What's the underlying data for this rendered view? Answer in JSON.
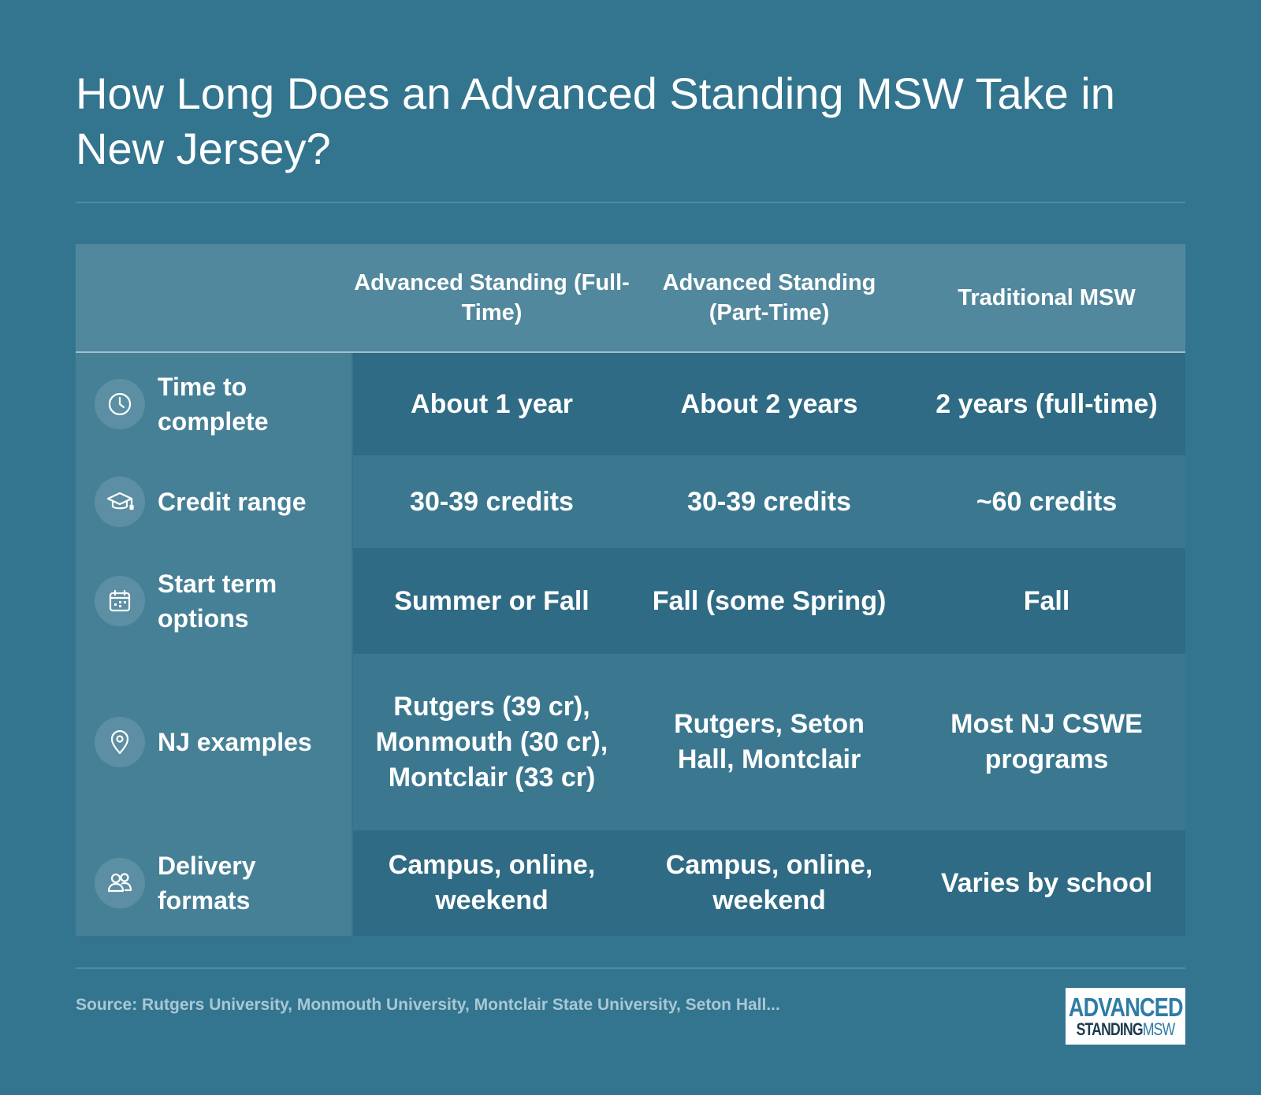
{
  "title": "How Long Does an Advanced Standing MSW Take in New Jersey?",
  "columns": [
    "Advanced Standing (Full-Time)",
    "Advanced Standing (Part-Time)",
    "Traditional MSW"
  ],
  "rows": [
    {
      "icon": "clock-icon",
      "label": "Time to complete",
      "cells": [
        "About 1 year",
        "About 2 years",
        "2 years (full-time)"
      ]
    },
    {
      "icon": "graduation-cap-icon",
      "label": "Credit range",
      "cells": [
        "30-39 credits",
        "30-39 credits",
        "~60 credits"
      ]
    },
    {
      "icon": "calendar-icon",
      "label": "Start term options",
      "cells": [
        "Summer or Fall",
        "Fall (some Spring)",
        "Fall"
      ]
    },
    {
      "icon": "location-pin-icon",
      "label": "NJ examples",
      "cells": [
        "Rutgers (39 cr), Monmouth (30 cr), Montclair (33 cr)",
        "Rutgers, Seton Hall, Montclair",
        "Most NJ CSWE programs"
      ]
    },
    {
      "icon": "people-icon",
      "label": "Delivery formats",
      "cells": [
        "Campus, online, weekend",
        "Campus, online, weekend",
        "Varies by school"
      ]
    }
  ],
  "source": "Source: Rutgers University, Monmouth University, Montclair State University, Seton Hall...",
  "logo": {
    "line1": "ADVANCED",
    "line2a": "STANDING",
    "line2b": "MSW"
  },
  "colors": {
    "background": "#33758f",
    "header": "#52889d",
    "label_column": "#468096",
    "row_dark": "#2f6b84",
    "row_light": "#3b7890",
    "logo_blue": "#2d7ca6"
  }
}
